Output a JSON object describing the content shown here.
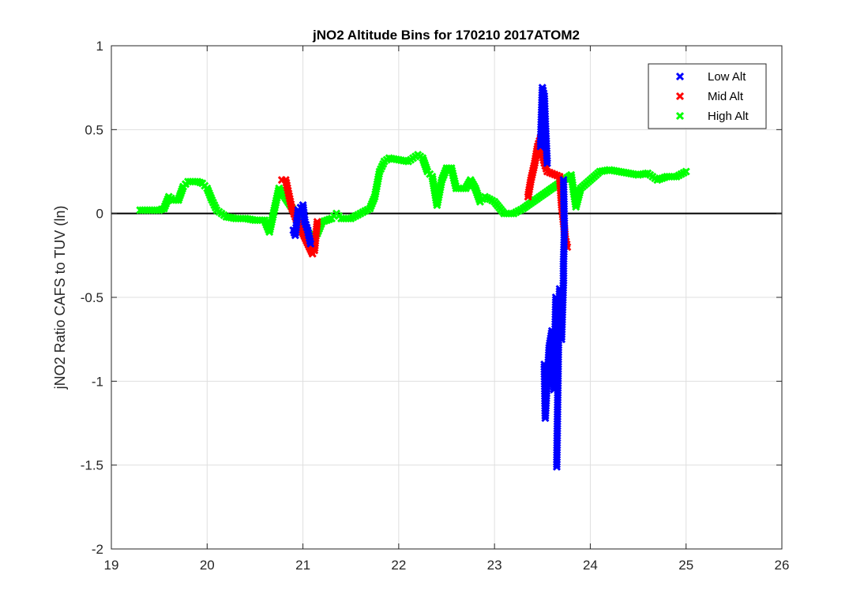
{
  "chart_data": {
    "type": "scatter",
    "title": "jNO2 Altitude Bins for 170210 2017ATOM2",
    "xlabel": "",
    "ylabel": "jNO2 Ratio CAFS to TUV (ln)",
    "xlim": [
      19,
      26
    ],
    "ylim": [
      -2,
      1
    ],
    "xticks": [
      "19",
      "20",
      "21",
      "22",
      "23",
      "24",
      "25",
      "26"
    ],
    "yticks": [
      "-2",
      "-1.5",
      "-1",
      "-0.5",
      "0",
      "0.5",
      "1"
    ],
    "grid": true,
    "legend_position": "top-right",
    "reference_line": 0,
    "reference_line_color": "#000000",
    "series": [
      {
        "name": "High Alt",
        "color": "#00ff00",
        "points": [
          [
            19.3,
            0.02
          ],
          [
            19.4,
            0.02
          ],
          [
            19.5,
            0.02
          ],
          [
            19.55,
            0.03
          ],
          [
            19.6,
            0.1
          ],
          [
            19.65,
            0.08
          ],
          [
            19.7,
            0.08
          ],
          [
            19.75,
            0.16
          ],
          [
            19.8,
            0.19
          ],
          [
            19.9,
            0.19
          ],
          [
            19.95,
            0.18
          ],
          [
            20.0,
            0.15
          ],
          [
            20.05,
            0.08
          ],
          [
            20.1,
            0.02
          ],
          [
            20.2,
            -0.02
          ],
          [
            20.3,
            -0.03
          ],
          [
            20.4,
            -0.03
          ],
          [
            20.5,
            -0.04
          ],
          [
            20.6,
            -0.04
          ],
          [
            20.65,
            -0.11
          ],
          [
            20.7,
            0.02
          ],
          [
            20.75,
            0.15
          ],
          [
            21.1,
            -0.15
          ],
          [
            21.15,
            -0.12
          ],
          [
            21.2,
            -0.05
          ],
          [
            21.3,
            -0.03
          ],
          [
            21.35,
            0.0
          ],
          [
            21.4,
            -0.03
          ],
          [
            21.5,
            -0.03
          ],
          [
            21.6,
            0.0
          ],
          [
            21.7,
            0.03
          ],
          [
            21.75,
            0.1
          ],
          [
            21.8,
            0.25
          ],
          [
            21.85,
            0.31
          ],
          [
            21.9,
            0.33
          ],
          [
            22.0,
            0.32
          ],
          [
            22.1,
            0.31
          ],
          [
            22.2,
            0.35
          ],
          [
            22.25,
            0.33
          ],
          [
            22.3,
            0.25
          ],
          [
            22.35,
            0.22
          ],
          [
            22.4,
            0.05
          ],
          [
            22.45,
            0.2
          ],
          [
            22.5,
            0.27
          ],
          [
            22.55,
            0.27
          ],
          [
            22.6,
            0.15
          ],
          [
            22.7,
            0.15
          ],
          [
            22.75,
            0.2
          ],
          [
            22.8,
            0.15
          ],
          [
            22.85,
            0.07
          ],
          [
            22.9,
            0.1
          ],
          [
            23.0,
            0.07
          ],
          [
            23.1,
            0.0
          ],
          [
            23.2,
            0.0
          ],
          [
            23.3,
            0.03
          ],
          [
            23.8,
            0.23
          ],
          [
            23.85,
            0.04
          ],
          [
            23.9,
            0.15
          ],
          [
            24.0,
            0.2
          ],
          [
            24.1,
            0.25
          ],
          [
            24.2,
            0.26
          ],
          [
            24.3,
            0.25
          ],
          [
            24.4,
            0.24
          ],
          [
            24.5,
            0.23
          ],
          [
            24.6,
            0.24
          ],
          [
            24.7,
            0.2
          ],
          [
            24.8,
            0.22
          ],
          [
            24.9,
            0.22
          ],
          [
            25.0,
            0.25
          ]
        ]
      },
      {
        "name": "Mid Alt",
        "color": "#ff0000",
        "points": [
          [
            20.78,
            0.2
          ],
          [
            20.82,
            0.2
          ],
          [
            20.85,
            0.12
          ],
          [
            20.88,
            0.04
          ],
          [
            20.92,
            -0.02
          ],
          [
            21.1,
            -0.24
          ],
          [
            21.12,
            -0.22
          ],
          [
            21.15,
            -0.05
          ],
          [
            23.35,
            0.1
          ],
          [
            23.38,
            0.2
          ],
          [
            23.42,
            0.3
          ],
          [
            23.45,
            0.4
          ],
          [
            23.48,
            0.45
          ],
          [
            23.5,
            0.35
          ],
          [
            23.52,
            0.3
          ],
          [
            23.55,
            0.25
          ],
          [
            23.68,
            0.22
          ],
          [
            23.7,
            0.05
          ],
          [
            23.72,
            -0.05
          ],
          [
            23.74,
            -0.15
          ],
          [
            23.76,
            -0.2
          ]
        ]
      },
      {
        "name": "Low Alt",
        "color": "#0000ff",
        "points": [
          [
            20.9,
            -0.1
          ],
          [
            20.92,
            -0.13
          ],
          [
            20.95,
            0.02
          ],
          [
            21.0,
            0.05
          ],
          [
            21.02,
            -0.05
          ],
          [
            21.05,
            -0.1
          ],
          [
            21.08,
            -0.18
          ],
          [
            23.48,
            0.4
          ],
          [
            23.5,
            0.75
          ],
          [
            23.52,
            0.7
          ],
          [
            23.53,
            0.55
          ],
          [
            23.55,
            0.3
          ],
          [
            23.52,
            -0.9
          ],
          [
            23.53,
            -1.22
          ],
          [
            23.55,
            -1.0
          ],
          [
            23.57,
            -0.8
          ],
          [
            23.6,
            -0.7
          ],
          [
            23.62,
            -1.05
          ],
          [
            23.64,
            -0.5
          ],
          [
            23.65,
            -1.51
          ],
          [
            23.67,
            -0.7
          ],
          [
            23.68,
            -0.45
          ],
          [
            23.7,
            -0.75
          ],
          [
            23.72,
            -0.4
          ],
          [
            23.72,
            -0.3
          ],
          [
            23.73,
            -0.1
          ],
          [
            23.72,
            0.2
          ]
        ]
      }
    ]
  }
}
